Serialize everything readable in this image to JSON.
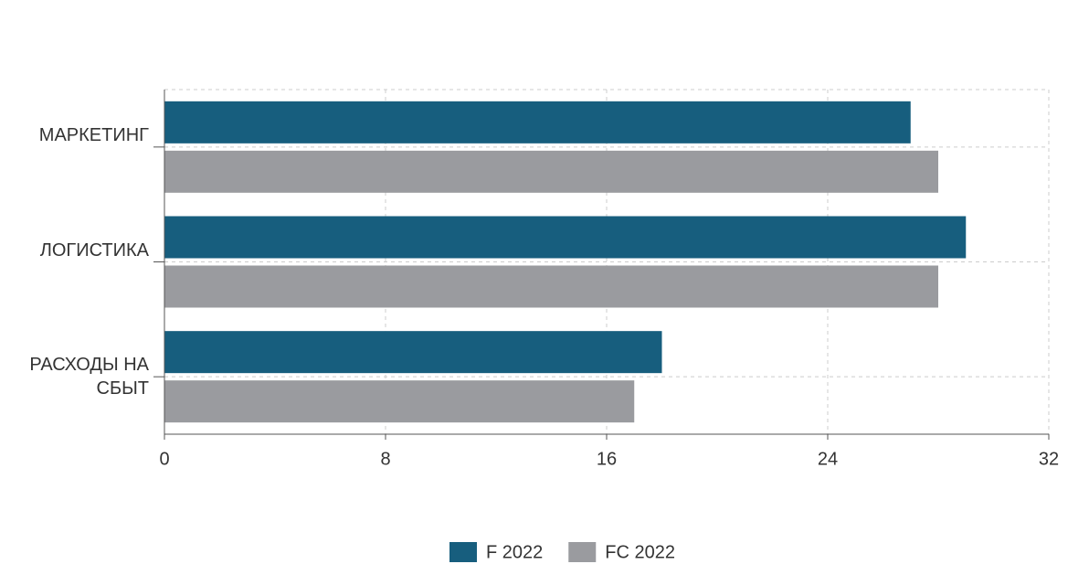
{
  "chart_data": {
    "type": "hbar",
    "categories": [
      "МАРКЕТИНГ",
      "ЛОГИСТИКА",
      "РАСХОДЫ НА СБЫТ"
    ],
    "series": [
      {
        "name": "F 2022",
        "color": "#175e7e",
        "values": [
          27,
          29,
          18
        ]
      },
      {
        "name": "FC 2022",
        "color": "#9a9b9f",
        "values": [
          28,
          28,
          17
        ]
      }
    ],
    "xlim": [
      0,
      32
    ],
    "xticks": [
      0,
      8,
      16,
      24,
      32
    ],
    "grid": true,
    "legend": "bottom"
  }
}
